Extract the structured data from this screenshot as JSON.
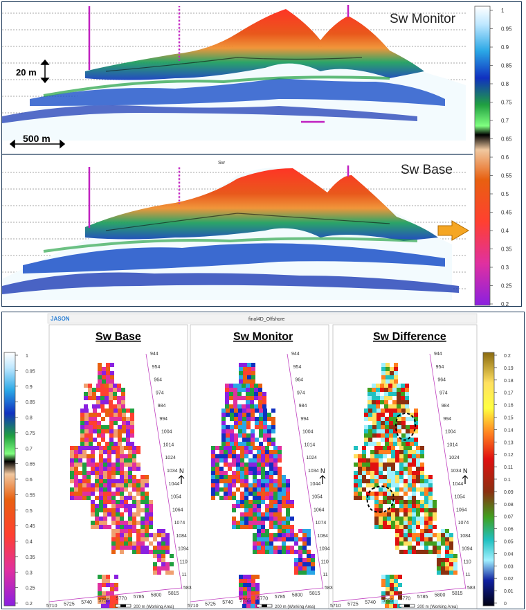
{
  "top": {
    "monitor_label": "Sw Monitor",
    "base_label": "Sw Base",
    "center_label": "Sw",
    "vertical_scale": "20 m",
    "horizontal_scale": "500 m",
    "colorbar_ticks": [
      "1",
      "0.95",
      "0.9",
      "0.85",
      "0.8",
      "0.75",
      "0.7",
      "0.65",
      "0.6",
      "0.55",
      "0.5",
      "0.45",
      "0.4",
      "0.35",
      "0.3",
      "0.25",
      "0.2"
    ]
  },
  "bottom": {
    "app_name": "JASON",
    "window_title": "final4D_Offshore",
    "maps": [
      {
        "title": "Sw Base",
        "scalebar": "200 m (Working Area)"
      },
      {
        "title": "Sw Monitor",
        "scalebar": "200 m (Working Area)"
      },
      {
        "title": "Sw Difference",
        "scalebar": "200 m (Working Area)"
      }
    ],
    "north": "N",
    "inline_ticks": [
      "944",
      "954",
      "964",
      "974",
      "984",
      "994",
      "1004",
      "1014",
      "1024",
      "1034",
      "1044",
      "1054",
      "1064",
      "1074",
      "1084",
      "1094",
      "110",
      "11",
      "583"
    ],
    "xline_ticks": [
      "5710",
      "5725",
      "5740",
      "5755",
      "5770",
      "5785",
      "5800",
      "5815"
    ],
    "left_colorbar_ticks": [
      "1",
      "0.95",
      "0.9",
      "0.85",
      "0.8",
      "0.75",
      "0.7",
      "0.65",
      "0.6",
      "0.55",
      "0.5",
      "0.45",
      "0.4",
      "0.35",
      "0.3",
      "0.25",
      "0.2"
    ],
    "right_colorbar_ticks": [
      "0.2",
      "0.19",
      "0.18",
      "0.17",
      "0.16",
      "0.15",
      "0.14",
      "0.13",
      "0.12",
      "0.11",
      "0.1",
      "0.09",
      "0.08",
      "0.07",
      "0.06",
      "0.05",
      "0.04",
      "0.03",
      "0.02",
      "0.01",
      "0"
    ]
  },
  "colors": {
    "frame": "#1f3b5a",
    "well": "#c020c0",
    "arrow": "#f5a623",
    "jason_blue": "#2a7fd4"
  }
}
